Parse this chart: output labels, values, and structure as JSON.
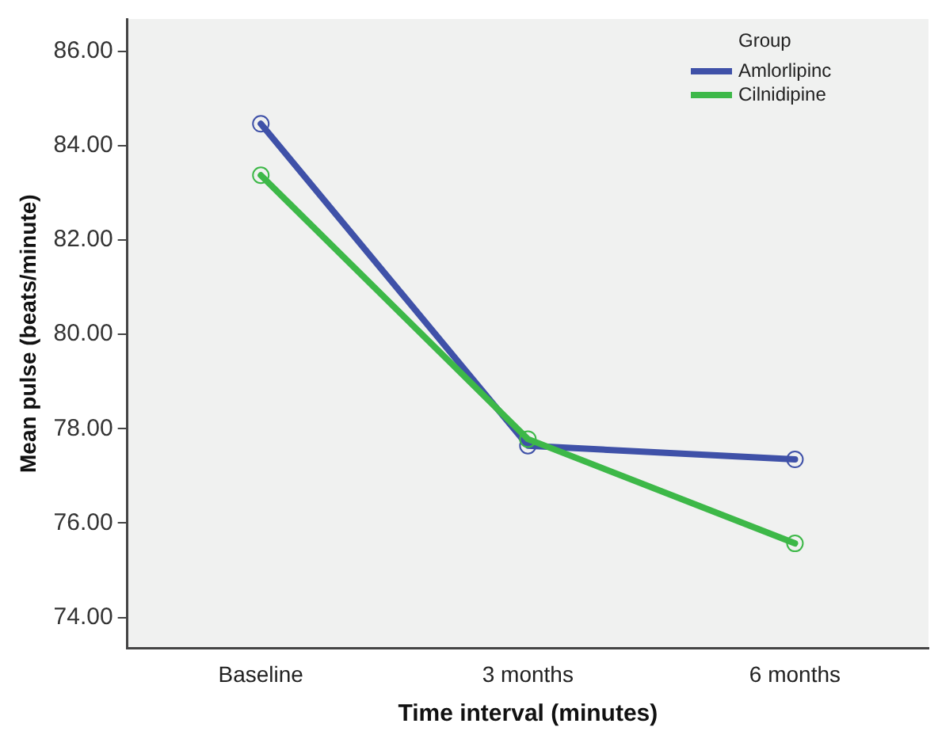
{
  "chart_data": {
    "type": "line",
    "xlabel": "Time interval (minutes)",
    "ylabel": "Mean pulse (beats/minute)",
    "legend_title": "Group",
    "categories": [
      "Baseline",
      "3 months",
      "6 months"
    ],
    "series": [
      {
        "name": "Amlorlipinc",
        "color": "#3f51a8",
        "values": [
          84.46,
          77.64,
          77.35
        ]
      },
      {
        "name": "Cilnidipine",
        "color": "#3db848",
        "values": [
          83.37,
          77.78,
          75.57
        ]
      }
    ],
    "ylim": [
      73.35,
      86.68
    ],
    "yticks": [
      {
        "value": 74,
        "label": "74.00"
      },
      {
        "value": 76,
        "label": "76.00"
      },
      {
        "value": 78,
        "label": "78.00"
      },
      {
        "value": 80,
        "label": "80.00"
      },
      {
        "value": 82,
        "label": "82.00"
      },
      {
        "value": 84,
        "label": "84.00"
      },
      {
        "value": 86,
        "label": "86.00"
      }
    ],
    "legend": "top right",
    "marker": "circle",
    "line_style": "solid",
    "grid": false
  }
}
